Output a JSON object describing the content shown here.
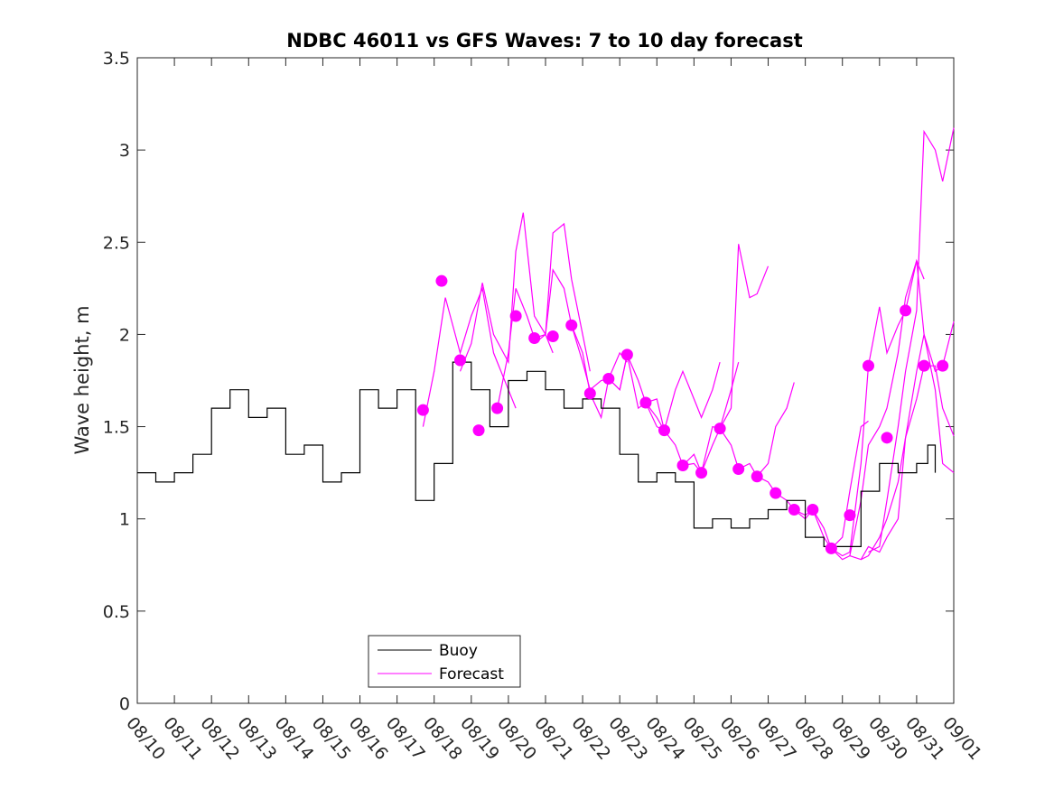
{
  "chart_data": {
    "type": "line",
    "title": "NDBC 46011 vs GFS Waves: 7 to 10 day forecast",
    "xlabel": "",
    "ylabel": "Wave height, m",
    "xlim": [
      0,
      22
    ],
    "ylim": [
      0,
      3.5
    ],
    "yticks": [
      0,
      0.5,
      1,
      1.5,
      2,
      2.5,
      3,
      3.5
    ],
    "ytick_labels": [
      "0",
      "0.5",
      "1",
      "1.5",
      "2",
      "2.5",
      "3",
      "3.5"
    ],
    "xtick_labels": [
      "08/10",
      "08/11",
      "08/12",
      "08/13",
      "08/14",
      "08/15",
      "08/16",
      "08/17",
      "08/18",
      "08/19",
      "08/20",
      "08/21",
      "08/22",
      "08/23",
      "08/24",
      "08/25",
      "08/26",
      "08/27",
      "08/28",
      "08/29",
      "08/30",
      "08/31",
      "09/01"
    ],
    "x_units": "days since 08/10",
    "legend": {
      "position": "bottom-center",
      "entries": [
        "Buoy",
        "Forecast"
      ]
    },
    "colors": {
      "buoy": "#000000",
      "forecast": "#FF00FF",
      "axis": "#262626"
    },
    "series": [
      {
        "name": "Buoy",
        "x": [
          0.0,
          0.5,
          1.0,
          1.5,
          2.0,
          2.5,
          3.0,
          3.5,
          4.0,
          4.5,
          5.0,
          5.5,
          6.0,
          6.5,
          7.0,
          7.5,
          8.0,
          8.5,
          9.0,
          9.5,
          10.0,
          10.5,
          11.0,
          11.5,
          12.0,
          12.5,
          13.0,
          13.5,
          14.0,
          14.5,
          15.0,
          15.5,
          16.0,
          16.5,
          17.0,
          17.5,
          18.0,
          18.5,
          19.0,
          19.5,
          20.0,
          20.5,
          21.0,
          21.3,
          21.5
        ],
        "y": [
          1.25,
          1.2,
          1.25,
          1.35,
          1.6,
          1.7,
          1.55,
          1.6,
          1.35,
          1.4,
          1.2,
          1.25,
          1.7,
          1.6,
          1.7,
          1.1,
          1.3,
          1.85,
          1.7,
          1.5,
          1.75,
          1.8,
          1.7,
          1.6,
          1.65,
          1.6,
          1.35,
          1.2,
          1.25,
          1.2,
          0.95,
          1.0,
          0.95,
          1.0,
          1.05,
          1.1,
          0.9,
          0.85,
          0.85,
          1.15,
          1.3,
          1.25,
          1.3,
          1.4,
          1.25
        ]
      },
      {
        "name": "Forecast",
        "x": [
          7.7,
          8.2,
          8.7,
          9.2,
          9.7,
          10.2,
          10.7,
          11.2,
          11.7,
          12.2,
          12.7,
          13.2,
          13.7,
          14.2,
          14.7,
          15.2,
          15.7,
          16.2,
          16.7,
          17.2,
          17.7,
          18.2,
          18.7,
          19.2,
          19.7,
          20.2,
          20.7,
          21.2,
          21.7
        ],
        "y": [
          1.59,
          2.29,
          1.86,
          1.48,
          1.6,
          2.1,
          1.98,
          1.99,
          2.05,
          1.68,
          1.76,
          1.89,
          1.63,
          1.48,
          1.29,
          1.25,
          1.49,
          1.27,
          1.23,
          1.14,
          1.05,
          1.05,
          0.84,
          1.02,
          1.83,
          1.44,
          2.13,
          1.83,
          1.83
        ]
      }
    ],
    "forecast_runs": [
      {
        "x": [
          7.7,
          8.0,
          8.3,
          8.7,
          9.0,
          9.3,
          9.6,
          10.0,
          10.2
        ],
        "y": [
          1.5,
          1.8,
          2.2,
          1.9,
          2.1,
          2.25,
          1.9,
          1.7,
          1.6
        ]
      },
      {
        "x": [
          8.7,
          9.0,
          9.3,
          9.6,
          10.0,
          10.2,
          10.4,
          10.7,
          11.0,
          11.2
        ],
        "y": [
          1.8,
          1.95,
          2.28,
          2.0,
          1.85,
          2.45,
          2.66,
          2.1,
          2.0,
          1.9
        ]
      },
      {
        "x": [
          9.7,
          10.0,
          10.2,
          10.5,
          10.7,
          11.0,
          11.2,
          11.5,
          11.7,
          12.0,
          12.2
        ],
        "y": [
          1.6,
          1.9,
          2.25,
          2.1,
          1.98,
          2.0,
          2.55,
          2.6,
          2.3,
          2.0,
          1.8
        ]
      },
      {
        "x": [
          10.7,
          11.0,
          11.2,
          11.5,
          11.7,
          12.0,
          12.2,
          12.5,
          12.7,
          13.0,
          13.2
        ],
        "y": [
          1.95,
          2.0,
          2.35,
          2.25,
          2.05,
          1.85,
          1.7,
          1.75,
          1.76,
          1.9,
          1.85
        ]
      },
      {
        "x": [
          11.7,
          12.0,
          12.2,
          12.5,
          12.7,
          13.0,
          13.2,
          13.5,
          13.7,
          14.0,
          14.2
        ],
        "y": [
          2.05,
          1.9,
          1.68,
          1.55,
          1.76,
          1.7,
          1.89,
          1.75,
          1.63,
          1.55,
          1.48
        ]
      },
      {
        "x": [
          12.7,
          13.0,
          13.2,
          13.5,
          13.7,
          14.0,
          14.2,
          14.5,
          14.7,
          15.0,
          15.2,
          15.5,
          15.7
        ],
        "y": [
          1.76,
          1.7,
          1.89,
          1.6,
          1.63,
          1.65,
          1.48,
          1.7,
          1.8,
          1.65,
          1.55,
          1.7,
          1.85
        ]
      },
      {
        "x": [
          13.7,
          14.0,
          14.2,
          14.5,
          14.7,
          15.0,
          15.2,
          15.5,
          15.7,
          16.0,
          16.2
        ],
        "y": [
          1.63,
          1.5,
          1.48,
          1.4,
          1.29,
          1.3,
          1.25,
          1.4,
          1.49,
          1.7,
          1.85
        ]
      },
      {
        "x": [
          14.7,
          15.0,
          15.2,
          15.5,
          15.7,
          16.0,
          16.2,
          16.5,
          16.7,
          17.0
        ],
        "y": [
          1.29,
          1.35,
          1.25,
          1.5,
          1.49,
          1.6,
          2.49,
          2.2,
          2.22,
          2.37
        ]
      },
      {
        "x": [
          15.7,
          16.0,
          16.2,
          16.5,
          16.7,
          17.0,
          17.2,
          17.5,
          17.7
        ],
        "y": [
          1.49,
          1.4,
          1.27,
          1.3,
          1.23,
          1.3,
          1.5,
          1.6,
          1.74
        ]
      },
      {
        "x": [
          16.7,
          17.0,
          17.2,
          17.5,
          17.7,
          18.0,
          18.2,
          18.5,
          18.7,
          19.0,
          19.2,
          19.5,
          19.7
        ],
        "y": [
          1.23,
          1.2,
          1.14,
          1.1,
          1.05,
          1.02,
          1.05,
          0.95,
          0.84,
          0.9,
          1.15,
          1.5,
          1.53
        ]
      },
      {
        "x": [
          17.7,
          18.0,
          18.2,
          18.5,
          18.7,
          19.0,
          19.2,
          19.5,
          19.7,
          20.0,
          20.2,
          20.5,
          20.7,
          21.0,
          21.2
        ],
        "y": [
          1.05,
          1.0,
          1.05,
          0.9,
          0.84,
          0.8,
          0.82,
          1.3,
          1.83,
          2.15,
          1.9,
          2.05,
          2.13,
          2.4,
          2.3
        ]
      },
      {
        "x": [
          18.7,
          19.0,
          19.2,
          19.5,
          19.7,
          20.0,
          20.2,
          20.5,
          20.7,
          21.0,
          21.2,
          21.5,
          21.7,
          22.0
        ],
        "y": [
          0.84,
          0.78,
          0.8,
          1.1,
          1.4,
          1.5,
          1.6,
          1.9,
          2.2,
          2.4,
          2.0,
          1.8,
          1.83,
          2.07
        ]
      },
      {
        "x": [
          19.2,
          19.5,
          19.7,
          20.0,
          20.2,
          20.5,
          20.7,
          21.0,
          21.2,
          21.5,
          21.7,
          22.0
        ],
        "y": [
          0.8,
          0.78,
          0.85,
          0.82,
          0.9,
          1.0,
          1.44,
          1.8,
          2.0,
          1.7,
          1.3,
          1.25
        ]
      },
      {
        "x": [
          19.7,
          20.0,
          20.2,
          20.5,
          20.7,
          21.0,
          21.2,
          21.5,
          21.7,
          22.0
        ],
        "y": [
          0.82,
          0.85,
          1.1,
          1.5,
          1.8,
          2.13,
          3.1,
          3.0,
          2.83,
          3.12
        ]
      },
      {
        "x": [
          19.5,
          19.7,
          20.0,
          20.2,
          20.5,
          20.7,
          21.0,
          21.2,
          21.5,
          21.7,
          22.0
        ],
        "y": [
          0.78,
          0.8,
          0.9,
          1.0,
          1.2,
          1.44,
          1.65,
          1.83,
          1.83,
          1.6,
          1.45
        ]
      }
    ]
  }
}
